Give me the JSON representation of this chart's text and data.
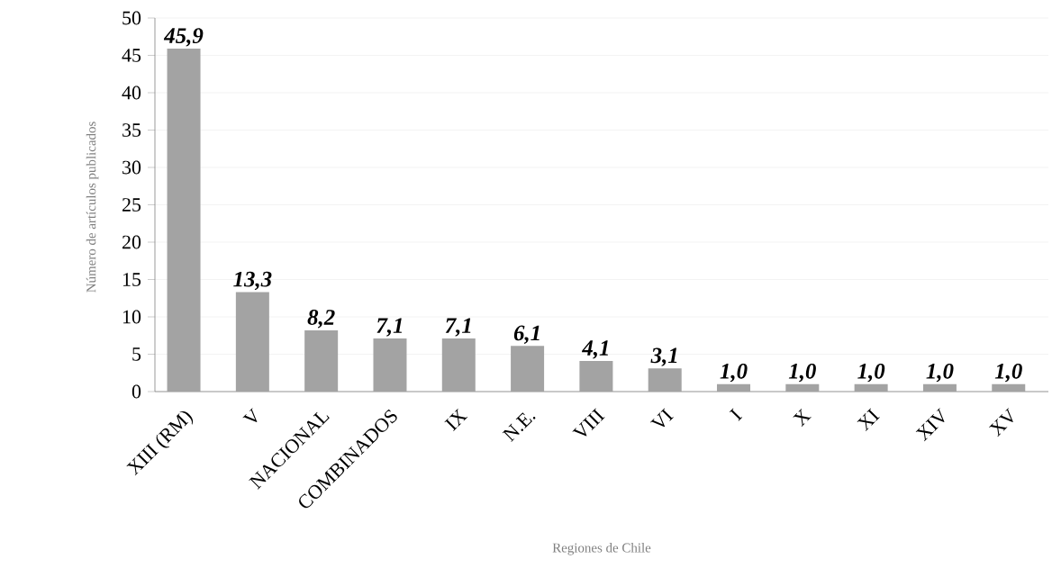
{
  "chart_data": {
    "type": "bar",
    "xlabel": "Regiones de Chile",
    "ylabel": "Número de artículos publicados",
    "categories": [
      "XIII (RM)",
      "V",
      "NACIONAL",
      "COMBINADOS",
      "IX",
      "N.E.",
      "VIII",
      "VI",
      "I",
      "X",
      "XI",
      "XIV",
      "XV"
    ],
    "values": [
      45.9,
      13.3,
      8.2,
      7.1,
      7.1,
      6.1,
      4.1,
      3.1,
      1.0,
      1.0,
      1.0,
      1.0,
      1.0
    ],
    "value_labels": [
      "45,9",
      "13,3",
      "8,2",
      "7,1",
      "7,1",
      "6,1",
      "4,1",
      "3,1",
      "1,0",
      "1,0",
      "1,0",
      "1,0",
      "1,0"
    ],
    "color": "#a3a3a3",
    "ylim": [
      0,
      50
    ],
    "yticks": [
      0,
      5,
      10,
      15,
      20,
      25,
      30,
      35,
      40,
      45,
      50
    ],
    "grid": "y"
  }
}
